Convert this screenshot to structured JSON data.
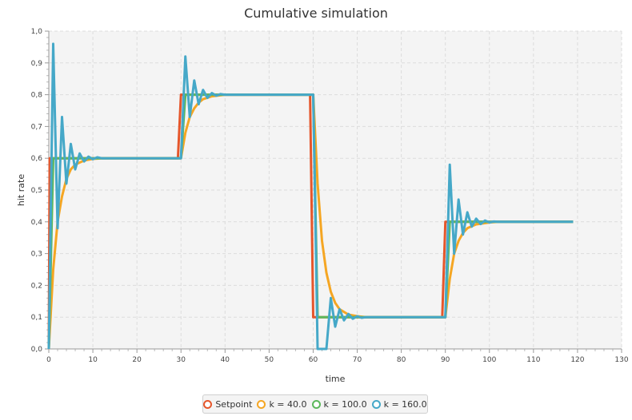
{
  "chart_data": {
    "type": "line",
    "title": "Cumulative simulation",
    "xlabel": "time",
    "ylabel": "hit rate",
    "xlim": [
      0,
      130
    ],
    "ylim": [
      0,
      1
    ],
    "x_ticks": [
      "0",
      "10",
      "20",
      "30",
      "40",
      "50",
      "60",
      "70",
      "80",
      "90",
      "100",
      "110",
      "120",
      "130"
    ],
    "y_ticks": [
      "0,0",
      "0,1",
      "0,2",
      "0,3",
      "0,4",
      "0,5",
      "0,6",
      "0,7",
      "0,8",
      "0,9",
      "1,0"
    ],
    "grid": true,
    "legend_position": "bottom",
    "series": [
      {
        "name": "Setpoint",
        "color": "#e5562b",
        "points": [
          [
            0,
            0
          ],
          [
            0.2,
            0.6
          ],
          [
            29.3,
            0.6
          ],
          [
            30,
            0.8
          ],
          [
            59.3,
            0.8
          ],
          [
            60,
            0.1
          ],
          [
            89.3,
            0.1
          ],
          [
            90,
            0.4
          ],
          [
            119,
            0.4
          ]
        ]
      },
      {
        "name": "k = 40.0",
        "color": "#f5a623",
        "points": [
          [
            0,
            0
          ],
          [
            1,
            0.25
          ],
          [
            2,
            0.4
          ],
          [
            3,
            0.48
          ],
          [
            4,
            0.535
          ],
          [
            5,
            0.565
          ],
          [
            6,
            0.58
          ],
          [
            8,
            0.593
          ],
          [
            10,
            0.598
          ],
          [
            12,
            0.6
          ],
          [
            30,
            0.6
          ],
          [
            31,
            0.68
          ],
          [
            32,
            0.73
          ],
          [
            33,
            0.757
          ],
          [
            34,
            0.775
          ],
          [
            35,
            0.786
          ],
          [
            37,
            0.795
          ],
          [
            40,
            0.8
          ],
          [
            60,
            0.8
          ],
          [
            61,
            0.52
          ],
          [
            62,
            0.34
          ],
          [
            63,
            0.24
          ],
          [
            64,
            0.18
          ],
          [
            65,
            0.145
          ],
          [
            66,
            0.125
          ],
          [
            68,
            0.108
          ],
          [
            70,
            0.103
          ],
          [
            72,
            0.1
          ],
          [
            90,
            0.1
          ],
          [
            91,
            0.22
          ],
          [
            92,
            0.3
          ],
          [
            93,
            0.34
          ],
          [
            94,
            0.365
          ],
          [
            95,
            0.38
          ],
          [
            97,
            0.392
          ],
          [
            100,
            0.398
          ],
          [
            102,
            0.4
          ],
          [
            119,
            0.4
          ]
        ]
      },
      {
        "name": "k = 100.0",
        "color": "#5cb85c",
        "points": [
          [
            0,
            0
          ],
          [
            1,
            0.6
          ],
          [
            30,
            0.6
          ],
          [
            31,
            0.8
          ],
          [
            60,
            0.8
          ],
          [
            61,
            0.1
          ],
          [
            90,
            0.1
          ],
          [
            91,
            0.4
          ],
          [
            119,
            0.4
          ]
        ]
      },
      {
        "name": "k = 160.0",
        "color": "#45a8c8",
        "points": [
          [
            0,
            0
          ],
          [
            1,
            0.96
          ],
          [
            2,
            0.38
          ],
          [
            3,
            0.73
          ],
          [
            4,
            0.52
          ],
          [
            5,
            0.645
          ],
          [
            6,
            0.565
          ],
          [
            7,
            0.615
          ],
          [
            8,
            0.59
          ],
          [
            9,
            0.605
          ],
          [
            10,
            0.597
          ],
          [
            11,
            0.603
          ],
          [
            12,
            0.6
          ],
          [
            30,
            0.6
          ],
          [
            31,
            0.92
          ],
          [
            32,
            0.73
          ],
          [
            33,
            0.845
          ],
          [
            34,
            0.77
          ],
          [
            35,
            0.815
          ],
          [
            36,
            0.79
          ],
          [
            37,
            0.805
          ],
          [
            38,
            0.797
          ],
          [
            39,
            0.802
          ],
          [
            40,
            0.8
          ],
          [
            60,
            0.8
          ],
          [
            61,
            0.0
          ],
          [
            62,
            0.0
          ],
          [
            63,
            0.0
          ],
          [
            64,
            0.16
          ],
          [
            65,
            0.07
          ],
          [
            66,
            0.125
          ],
          [
            67,
            0.09
          ],
          [
            68,
            0.11
          ],
          [
            69,
            0.095
          ],
          [
            70,
            0.103
          ],
          [
            71,
            0.098
          ],
          [
            72,
            0.1
          ],
          [
            90,
            0.1
          ],
          [
            91,
            0.58
          ],
          [
            92,
            0.3
          ],
          [
            93,
            0.47
          ],
          [
            94,
            0.36
          ],
          [
            95,
            0.43
          ],
          [
            96,
            0.385
          ],
          [
            97,
            0.41
          ],
          [
            98,
            0.393
          ],
          [
            99,
            0.404
          ],
          [
            100,
            0.398
          ],
          [
            101,
            0.401
          ],
          [
            102,
            0.4
          ],
          [
            119,
            0.4
          ]
        ]
      }
    ]
  }
}
